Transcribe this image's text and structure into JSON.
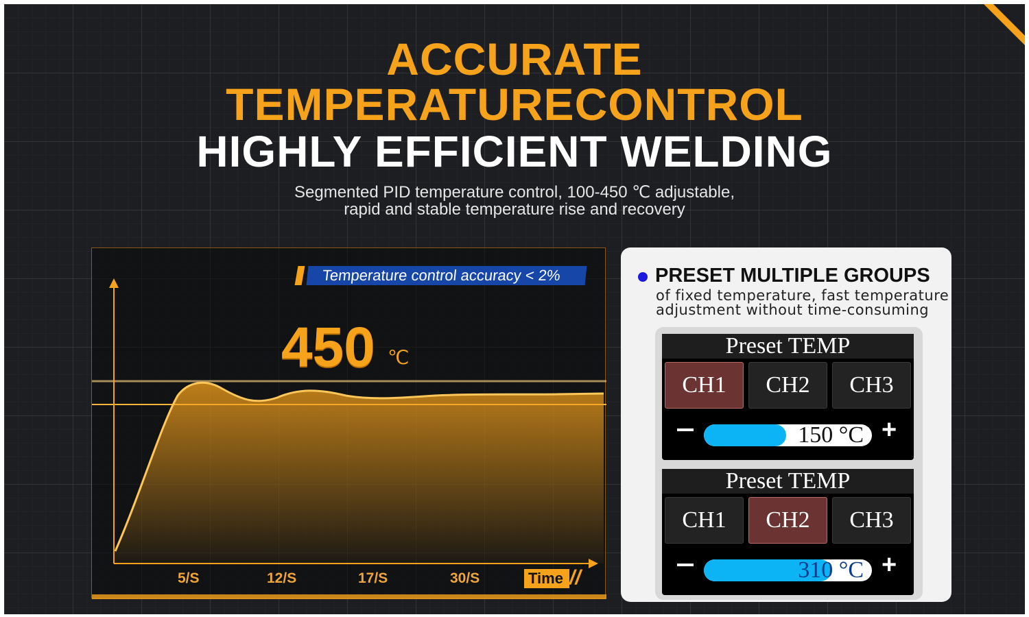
{
  "heading": {
    "line1": "ACCURATE",
    "line2": "TEMPERATURECONTROL",
    "line3": "HIGHLY EFFICIENT WELDING"
  },
  "subtitle": {
    "line1": "Segmented PID temperature control, 100-450 ℃ adjustable,",
    "line2": "rapid and stable temperature rise and recovery"
  },
  "chart": {
    "badge": "Temperature control accuracy < 2%",
    "value": "450",
    "unit": "℃",
    "x_ticks": [
      "5/S",
      "12/S",
      "17/S",
      "30/S"
    ],
    "x_label": "Time",
    "slashes": "//",
    "accent": "#f7a21b"
  },
  "preset": {
    "title": "PRESET MULTIPLE GROUPS",
    "desc1": "of fixed temperature, fast temperature",
    "desc2": "adjustment without time-consuming",
    "groups": [
      {
        "title": "Preset TEMP",
        "channels": [
          "CH1",
          "CH2",
          "CH3"
        ],
        "active": 0,
        "value": "150 °C",
        "level": 0.49
      },
      {
        "title": "Preset TEMP",
        "channels": [
          "CH1",
          "CH2",
          "CH3"
        ],
        "active": 1,
        "value": "310 °C",
        "level": 0.76
      }
    ],
    "minus": "−",
    "plus": "+",
    "slider_color": "#0db4f5",
    "active_color": "#6b3433"
  }
}
